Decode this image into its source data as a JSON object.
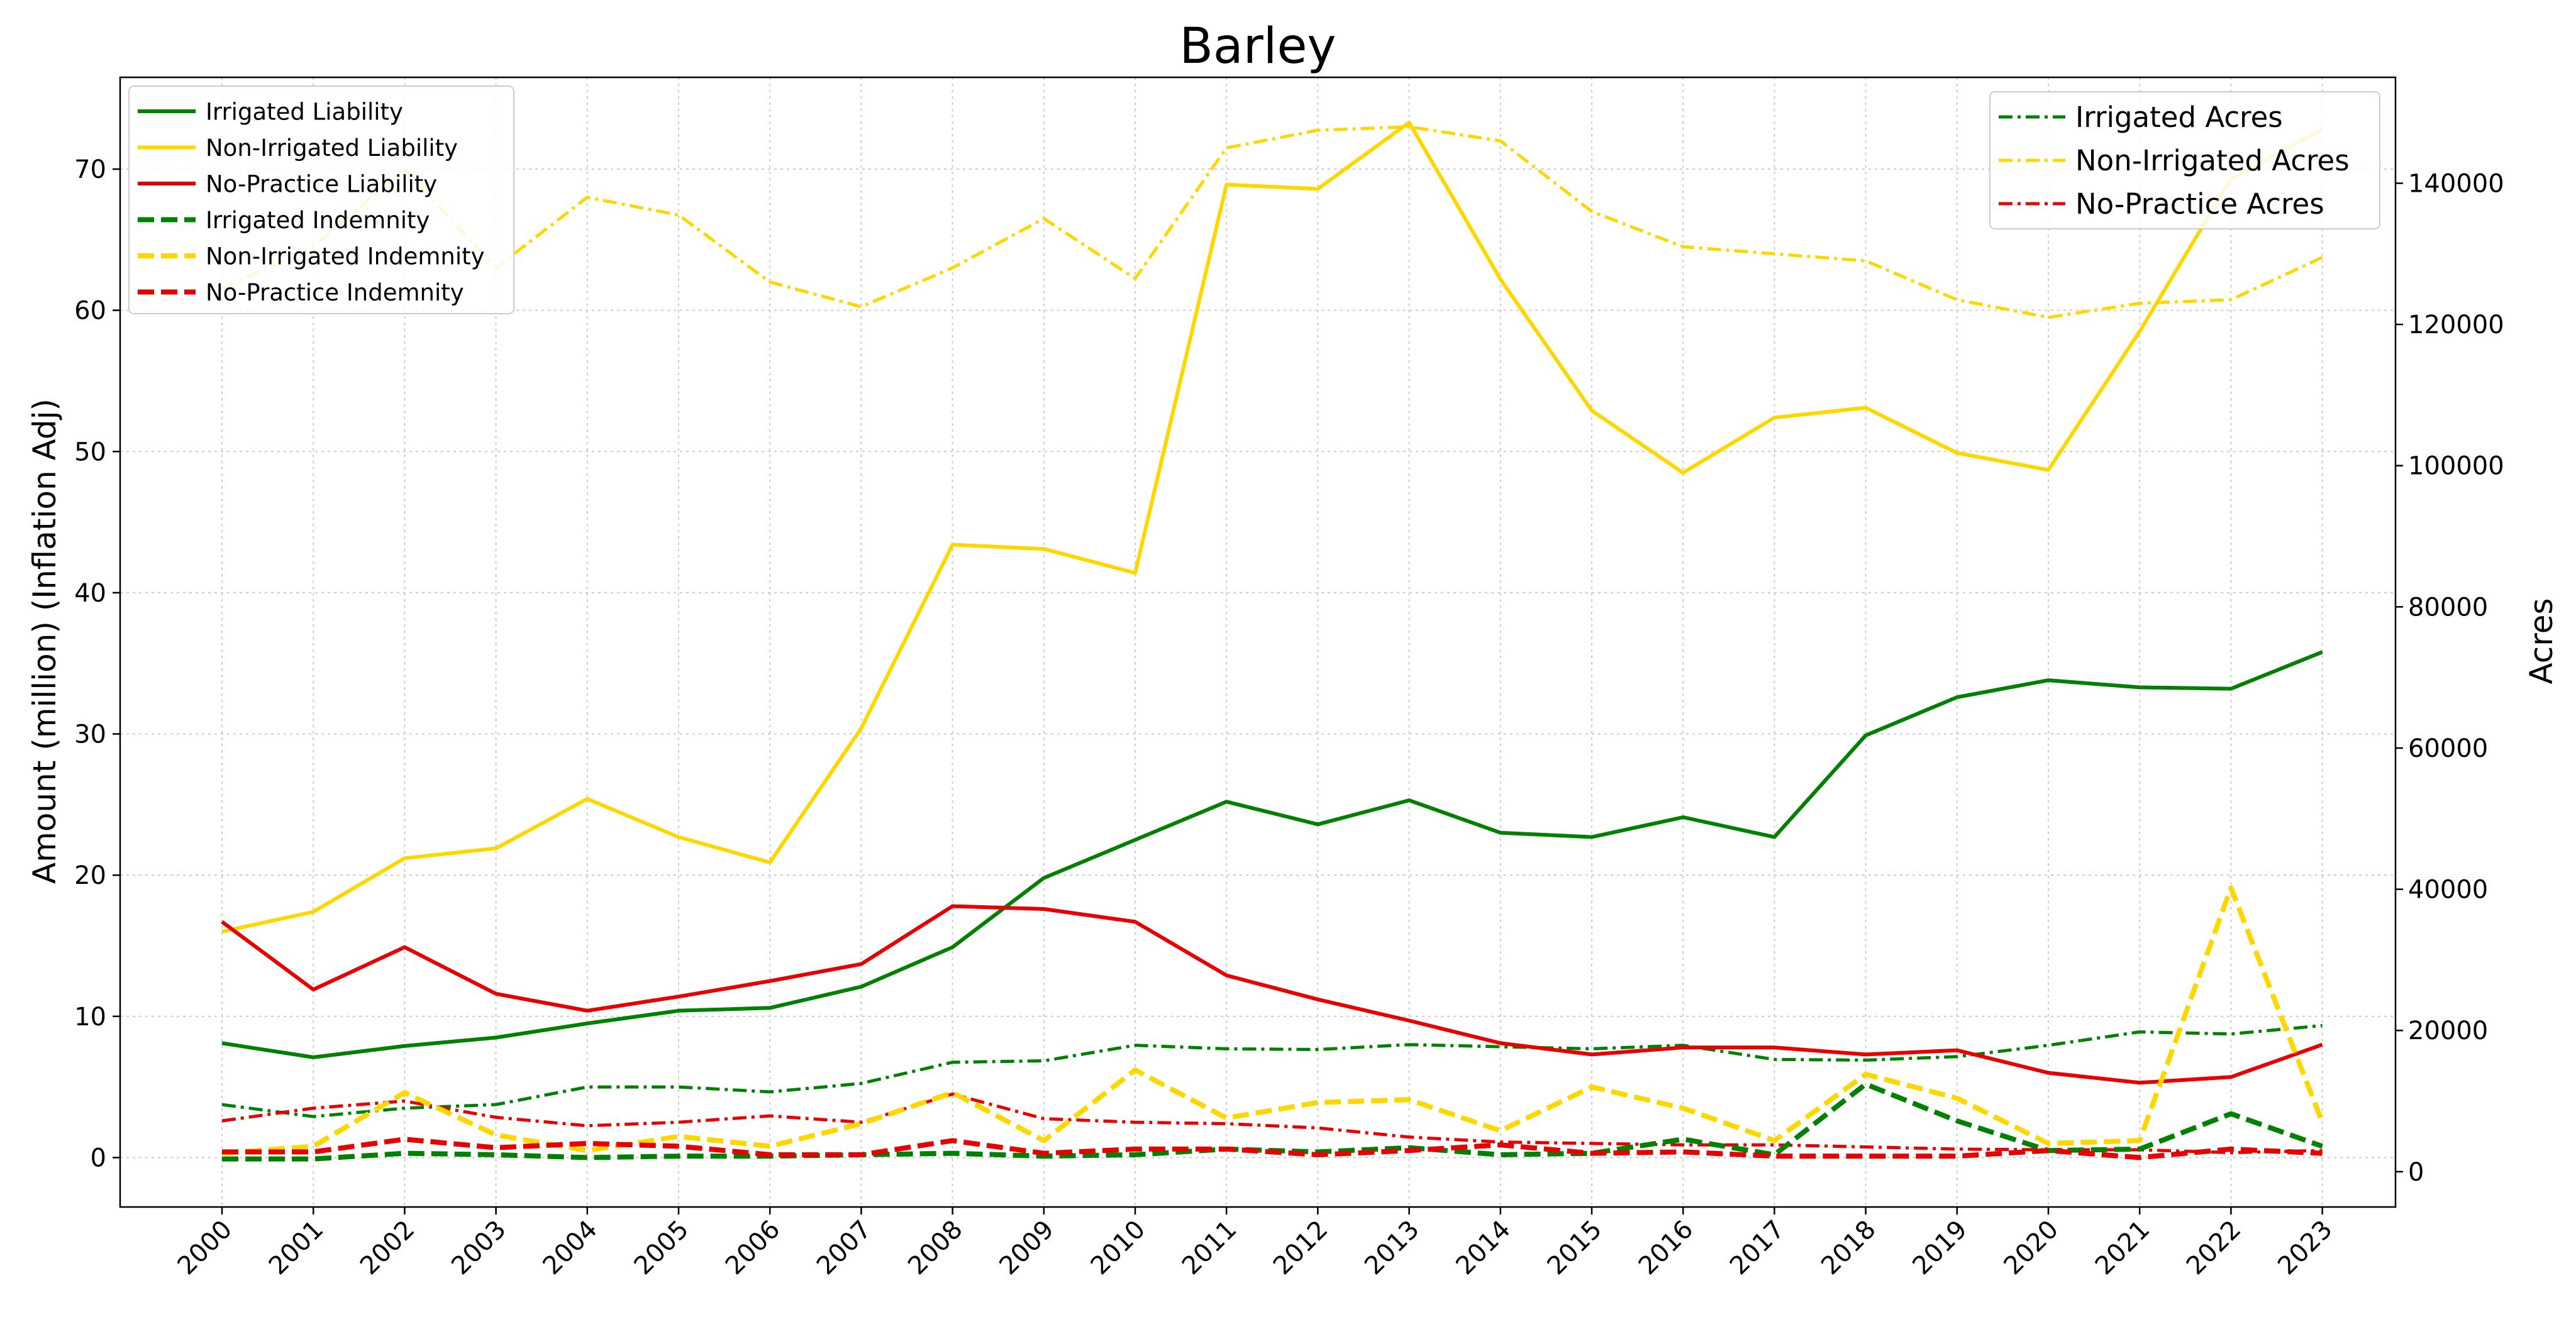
{
  "chart_data": {
    "type": "line",
    "title": "Barley",
    "xlabel": "",
    "ylabel": "Amount (million) (Inflation Adj)",
    "y2label": "Acres",
    "x": [
      2000,
      2001,
      2002,
      2003,
      2004,
      2005,
      2006,
      2007,
      2008,
      2009,
      2010,
      2011,
      2012,
      2013,
      2014,
      2015,
      2016,
      2017,
      2018,
      2019,
      2020,
      2021,
      2022,
      2023
    ],
    "ylim": [
      -3.5,
      76.5
    ],
    "y2lim": [
      -5000,
      155000
    ],
    "yticks": [
      0,
      10,
      20,
      30,
      40,
      50,
      60,
      70
    ],
    "y2ticks": [
      0,
      20000,
      40000,
      60000,
      80000,
      100000,
      120000,
      140000
    ],
    "grid": true,
    "series": [
      {
        "name": "Irrigated Liability",
        "axis": "left",
        "color": "#008000",
        "style": "solid",
        "values": [
          8.1,
          7.1,
          7.9,
          8.5,
          9.5,
          10.4,
          10.6,
          12.1,
          14.9,
          19.8,
          22.5,
          25.2,
          23.6,
          25.3,
          23.0,
          22.7,
          24.1,
          22.7,
          29.9,
          32.6,
          33.8,
          33.3,
          33.2,
          35.8
        ]
      },
      {
        "name": "Non-Irrigated Liability",
        "axis": "left",
        "color": "#FFD700",
        "style": "solid",
        "values": [
          16.0,
          17.4,
          21.2,
          21.9,
          25.4,
          22.7,
          20.9,
          30.4,
          43.4,
          43.1,
          41.4,
          68.9,
          68.6,
          73.3,
          62.2,
          52.9,
          48.5,
          52.4,
          53.1,
          49.9,
          48.7,
          58.5,
          69.3,
          72.8
        ]
      },
      {
        "name": "No-Practice Liability",
        "axis": "left",
        "color": "#E60000",
        "style": "solid",
        "values": [
          16.7,
          11.9,
          14.9,
          11.6,
          10.4,
          11.4,
          12.5,
          13.7,
          17.8,
          17.6,
          16.7,
          12.9,
          11.2,
          9.7,
          8.1,
          7.3,
          7.8,
          7.8,
          7.3,
          7.6,
          6.0,
          5.3,
          5.7,
          8.0
        ]
      },
      {
        "name": "Irrigated Indemnity",
        "axis": "left",
        "color": "#008000",
        "style": "dashed",
        "values": [
          -0.1,
          -0.1,
          0.3,
          0.2,
          0.0,
          0.1,
          0.1,
          0.2,
          0.3,
          0.1,
          0.2,
          0.6,
          0.4,
          0.7,
          0.2,
          0.3,
          1.3,
          0.2,
          5.2,
          2.6,
          0.5,
          0.6,
          3.1,
          0.8
        ]
      },
      {
        "name": "Non-Irrigated Indemnity",
        "axis": "left",
        "color": "#FFD700",
        "style": "dashed",
        "values": [
          0.3,
          0.8,
          4.6,
          1.6,
          0.5,
          1.5,
          0.8,
          2.4,
          4.6,
          1.2,
          6.2,
          2.8,
          3.9,
          4.1,
          1.9,
          5.0,
          3.5,
          1.2,
          5.9,
          4.2,
          1.0,
          1.2,
          19.1,
          2.5
        ]
      },
      {
        "name": "No-Practice Indemnity",
        "axis": "left",
        "color": "#E60000",
        "style": "dashed",
        "values": [
          0.4,
          0.4,
          1.3,
          0.7,
          1.0,
          0.8,
          0.2,
          0.2,
          1.2,
          0.3,
          0.6,
          0.6,
          0.2,
          0.5,
          0.9,
          0.3,
          0.4,
          0.1,
          0.1,
          0.1,
          0.5,
          0.0,
          0.6,
          0.3
        ]
      },
      {
        "name": "Irrigated Acres",
        "axis": "right",
        "color": "#008000",
        "style": "dashdot",
        "values": [
          9500,
          7800,
          9000,
          9500,
          12000,
          12000,
          11300,
          12500,
          15500,
          15700,
          17900,
          17400,
          17300,
          18000,
          17700,
          17400,
          17900,
          15900,
          15800,
          16300,
          17900,
          19800,
          19500,
          20700
        ]
      },
      {
        "name": "Non-Irrigated Acres",
        "axis": "right",
        "color": "#FFD700",
        "style": "dashdot",
        "values": [
          125000,
          131000,
          142000,
          128000,
          138000,
          135500,
          126000,
          122500,
          128000,
          135000,
          126500,
          145000,
          147500,
          148000,
          146000,
          136000,
          131000,
          130000,
          129000,
          123500,
          121000,
          123000,
          123500,
          129500
        ]
      },
      {
        "name": "No-Practice Acres",
        "axis": "right",
        "color": "#E60000",
        "style": "dashdot",
        "values": [
          7200,
          9000,
          10000,
          7700,
          6500,
          7000,
          7900,
          7000,
          11000,
          7500,
          7000,
          6800,
          6200,
          4900,
          4200,
          4000,
          3800,
          3800,
          3500,
          3200,
          3100,
          3100,
          2700,
          3000
        ]
      }
    ],
    "legend_left_placement": "upper-left",
    "legend_right_placement": "upper-right"
  }
}
